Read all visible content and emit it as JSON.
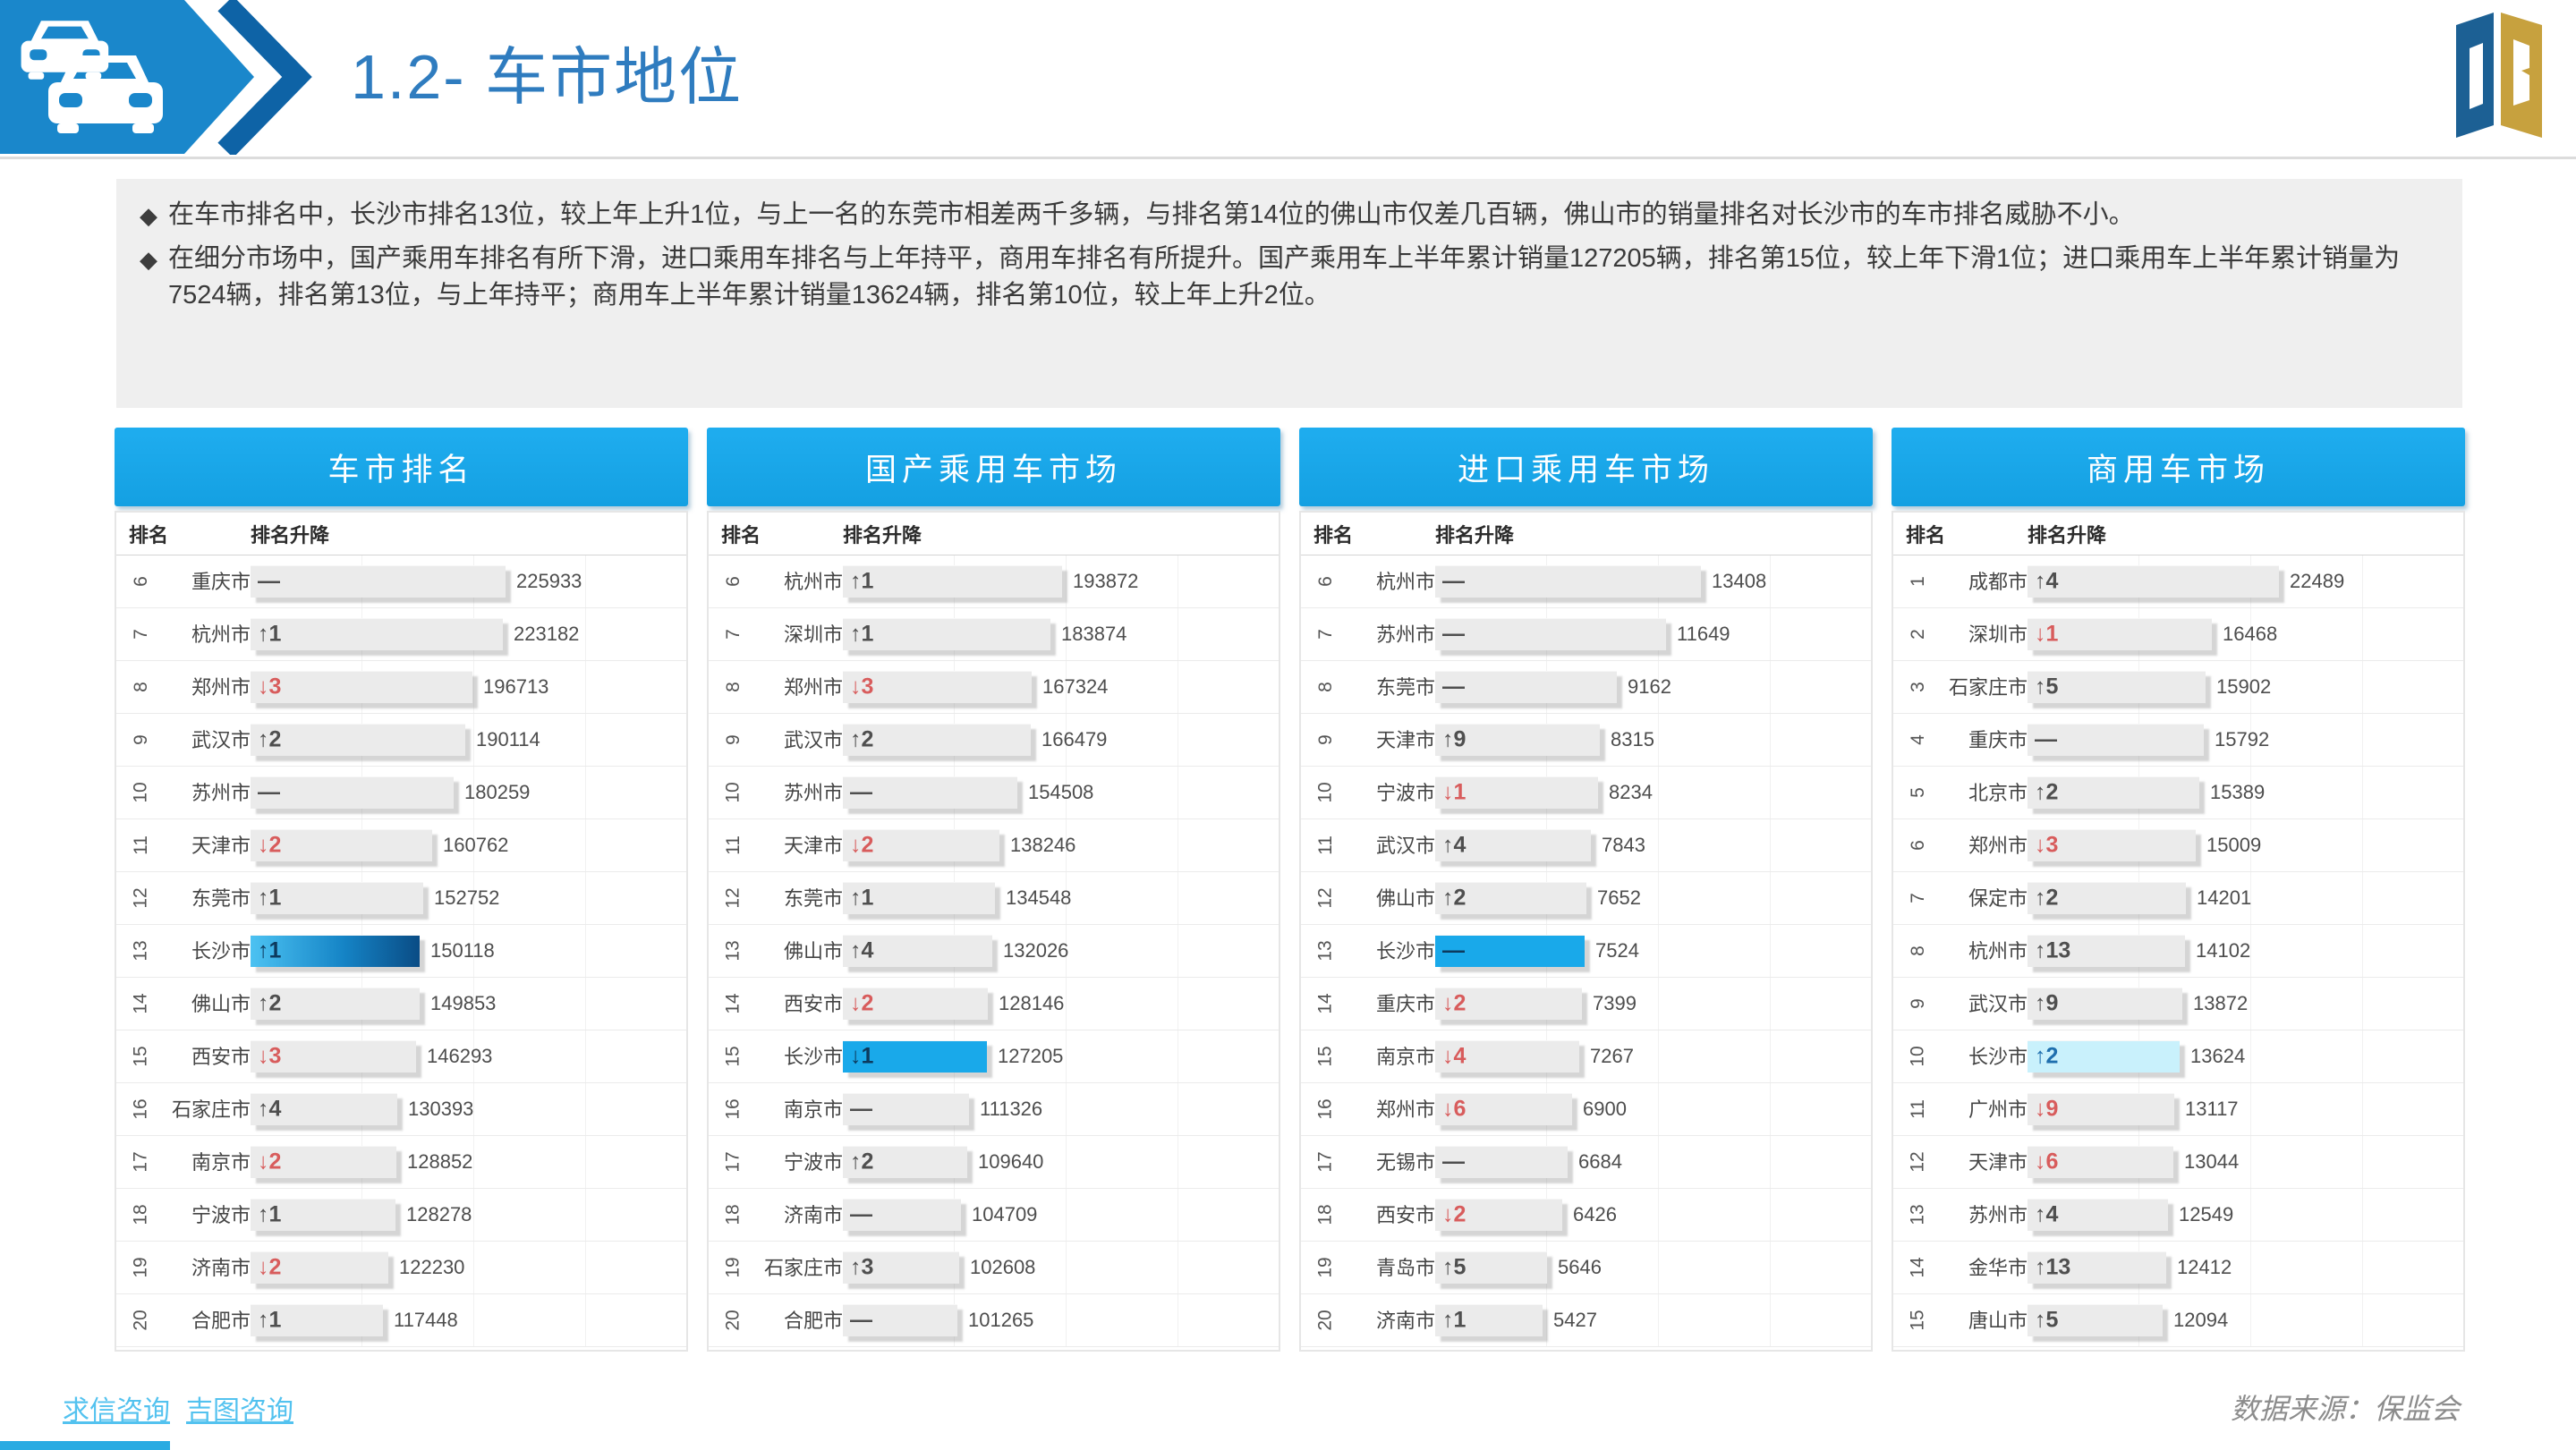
{
  "header": {
    "title": "1.2- 车市地位"
  },
  "bullets": [
    "在车市排名中，长沙市排名13位，较上年上升1位，与上一名的东莞市相差两千多辆，与排名第14位的佛山市仅差几百辆，佛山市的销量排名对长沙市的车市排名威胁不小。",
    "在细分市场中，国产乘用车排名有所下滑，进口乘用车排名与上年持平，商用车排名有所提升。国产乘用车上半年累计销量127205辆，排名第15位，较上年下滑1位；进口乘用车上半年累计销量为7524辆，排名第13位，与上年持平；商用车上半年累计销量13624辆，排名第10位，较上年上升2位。"
  ],
  "colors": {
    "panel_header_blue": "#18a9ea",
    "banner_blue": "#1a87cb",
    "highlight_gradient": [
      "#4cc2f2",
      "#0a4c85"
    ],
    "highlight_solid": "#19a9ea",
    "highlight_light": "#c9f1fc",
    "down_red": "#d85c5c",
    "link_blue": "#53c2ef"
  },
  "chart_data": [
    {
      "type": "bar",
      "title": "车市排名",
      "columns": [
        "排名",
        "排名升降"
      ],
      "rows": [
        {
          "rank": "6",
          "city": "重庆市",
          "change": "—",
          "dir": "flat",
          "value": 225933
        },
        {
          "rank": "7",
          "city": "杭州市",
          "change": "↑1",
          "dir": "up",
          "value": 223182
        },
        {
          "rank": "8",
          "city": "郑州市",
          "change": "↓3",
          "dir": "down",
          "value": 196713
        },
        {
          "rank": "9",
          "city": "武汉市",
          "change": "↑2",
          "dir": "up",
          "value": 190114
        },
        {
          "rank": "10",
          "city": "苏州市",
          "change": "—",
          "dir": "flat",
          "value": 180259
        },
        {
          "rank": "11",
          "city": "天津市",
          "change": "↓2",
          "dir": "down",
          "value": 160762
        },
        {
          "rank": "12",
          "city": "东莞市",
          "change": "↑1",
          "dir": "up",
          "value": 152752
        },
        {
          "rank": "13",
          "city": "长沙市",
          "change": "↑1",
          "dir": "up",
          "value": 150118,
          "highlight": "gradient"
        },
        {
          "rank": "14",
          "city": "佛山市",
          "change": "↑2",
          "dir": "up",
          "value": 149853
        },
        {
          "rank": "15",
          "city": "西安市",
          "change": "↓3",
          "dir": "down",
          "value": 146293
        },
        {
          "rank": "16",
          "city": "石家庄市",
          "change": "↑4",
          "dir": "up",
          "value": 130393
        },
        {
          "rank": "17",
          "city": "南京市",
          "change": "↓2",
          "dir": "down",
          "value": 128852
        },
        {
          "rank": "18",
          "city": "宁波市",
          "change": "↑1",
          "dir": "up",
          "value": 128278
        },
        {
          "rank": "19",
          "city": "济南市",
          "change": "↓2",
          "dir": "down",
          "value": 122230
        },
        {
          "rank": "20",
          "city": "合肥市",
          "change": "↑1",
          "dir": "up",
          "value": 117448
        }
      ]
    },
    {
      "type": "bar",
      "title": "国产乘用车市场",
      "columns": [
        "排名",
        "排名升降"
      ],
      "rows": [
        {
          "rank": "6",
          "city": "杭州市",
          "change": "↑1",
          "dir": "up",
          "value": 193872
        },
        {
          "rank": "7",
          "city": "深圳市",
          "change": "↑1",
          "dir": "up",
          "value": 183874
        },
        {
          "rank": "8",
          "city": "郑州市",
          "change": "↓3",
          "dir": "down",
          "value": 167324
        },
        {
          "rank": "9",
          "city": "武汉市",
          "change": "↑2",
          "dir": "up",
          "value": 166479
        },
        {
          "rank": "10",
          "city": "苏州市",
          "change": "—",
          "dir": "flat",
          "value": 154508
        },
        {
          "rank": "11",
          "city": "天津市",
          "change": "↓2",
          "dir": "down",
          "value": 138246
        },
        {
          "rank": "12",
          "city": "东莞市",
          "change": "↑1",
          "dir": "up",
          "value": 134548
        },
        {
          "rank": "13",
          "city": "佛山市",
          "change": "↑4",
          "dir": "up",
          "value": 132026
        },
        {
          "rank": "14",
          "city": "西安市",
          "change": "↓2",
          "dir": "down",
          "value": 128146
        },
        {
          "rank": "15",
          "city": "长沙市",
          "change": "↓1",
          "dir": "down",
          "value": 127205,
          "highlight": "solid"
        },
        {
          "rank": "16",
          "city": "南京市",
          "change": "—",
          "dir": "flat",
          "value": 111326
        },
        {
          "rank": "17",
          "city": "宁波市",
          "change": "↑2",
          "dir": "up",
          "value": 109640
        },
        {
          "rank": "18",
          "city": "济南市",
          "change": "—",
          "dir": "flat",
          "value": 104709
        },
        {
          "rank": "19",
          "city": "石家庄市",
          "change": "↑3",
          "dir": "up",
          "value": 102608
        },
        {
          "rank": "20",
          "city": "合肥市",
          "change": "—",
          "dir": "flat",
          "value": 101265
        }
      ]
    },
    {
      "type": "bar",
      "title": "进口乘用车市场",
      "columns": [
        "排名",
        "排名升降"
      ],
      "rows": [
        {
          "rank": "6",
          "city": "杭州市",
          "change": "—",
          "dir": "flat",
          "value": 13408
        },
        {
          "rank": "7",
          "city": "苏州市",
          "change": "—",
          "dir": "flat",
          "value": 11649
        },
        {
          "rank": "8",
          "city": "东莞市",
          "change": "—",
          "dir": "flat",
          "value": 9162
        },
        {
          "rank": "9",
          "city": "天津市",
          "change": "↑9",
          "dir": "up",
          "value": 8315
        },
        {
          "rank": "10",
          "city": "宁波市",
          "change": "↓1",
          "dir": "down",
          "value": 8234
        },
        {
          "rank": "11",
          "city": "武汉市",
          "change": "↑4",
          "dir": "up",
          "value": 7843
        },
        {
          "rank": "12",
          "city": "佛山市",
          "change": "↑2",
          "dir": "up",
          "value": 7652
        },
        {
          "rank": "13",
          "city": "长沙市",
          "change": "—",
          "dir": "flat",
          "value": 7524,
          "highlight": "solid"
        },
        {
          "rank": "14",
          "city": "重庆市",
          "change": "↓2",
          "dir": "down",
          "value": 7399
        },
        {
          "rank": "15",
          "city": "南京市",
          "change": "↓4",
          "dir": "down",
          "value": 7267
        },
        {
          "rank": "16",
          "city": "郑州市",
          "change": "↓6",
          "dir": "down",
          "value": 6900
        },
        {
          "rank": "17",
          "city": "无锡市",
          "change": "—",
          "dir": "flat",
          "value": 6684
        },
        {
          "rank": "18",
          "city": "西安市",
          "change": "↓2",
          "dir": "down",
          "value": 6426
        },
        {
          "rank": "19",
          "city": "青岛市",
          "change": "↑5",
          "dir": "up",
          "value": 5646
        },
        {
          "rank": "20",
          "city": "济南市",
          "change": "↑1",
          "dir": "up",
          "value": 5427
        }
      ]
    },
    {
      "type": "bar",
      "title": "商用车市场",
      "columns": [
        "排名",
        "排名升降"
      ],
      "rows": [
        {
          "rank": "1",
          "city": "成都市",
          "change": "↑4",
          "dir": "up",
          "value": 22489
        },
        {
          "rank": "2",
          "city": "深圳市",
          "change": "↓1",
          "dir": "down",
          "value": 16468
        },
        {
          "rank": "3",
          "city": "石家庄市",
          "change": "↑5",
          "dir": "up",
          "value": 15902
        },
        {
          "rank": "4",
          "city": "重庆市",
          "change": "—",
          "dir": "flat",
          "value": 15792
        },
        {
          "rank": "5",
          "city": "北京市",
          "change": "↑2",
          "dir": "up",
          "value": 15389
        },
        {
          "rank": "6",
          "city": "郑州市",
          "change": "↓3",
          "dir": "down",
          "value": 15009
        },
        {
          "rank": "7",
          "city": "保定市",
          "change": "↑2",
          "dir": "up",
          "value": 14201
        },
        {
          "rank": "8",
          "city": "杭州市",
          "change": "↑13",
          "dir": "up",
          "value": 14102
        },
        {
          "rank": "9",
          "city": "武汉市",
          "change": "↑9",
          "dir": "up",
          "value": 13872
        },
        {
          "rank": "10",
          "city": "长沙市",
          "change": "↑2",
          "dir": "up",
          "value": 13624,
          "highlight": "light"
        },
        {
          "rank": "11",
          "city": "广州市",
          "change": "↓9",
          "dir": "down",
          "value": 13117
        },
        {
          "rank": "12",
          "city": "天津市",
          "change": "↓6",
          "dir": "down",
          "value": 13044
        },
        {
          "rank": "13",
          "city": "苏州市",
          "change": "↑4",
          "dir": "up",
          "value": 12549
        },
        {
          "rank": "14",
          "city": "金华市",
          "change": "↑13",
          "dir": "up",
          "value": 12412
        },
        {
          "rank": "15",
          "city": "唐山市",
          "change": "↑5",
          "dir": "up",
          "value": 12094
        }
      ]
    }
  ],
  "footer": {
    "links": [
      "求信咨询",
      "吉图咨询"
    ],
    "source": "数据来源：保监会"
  }
}
